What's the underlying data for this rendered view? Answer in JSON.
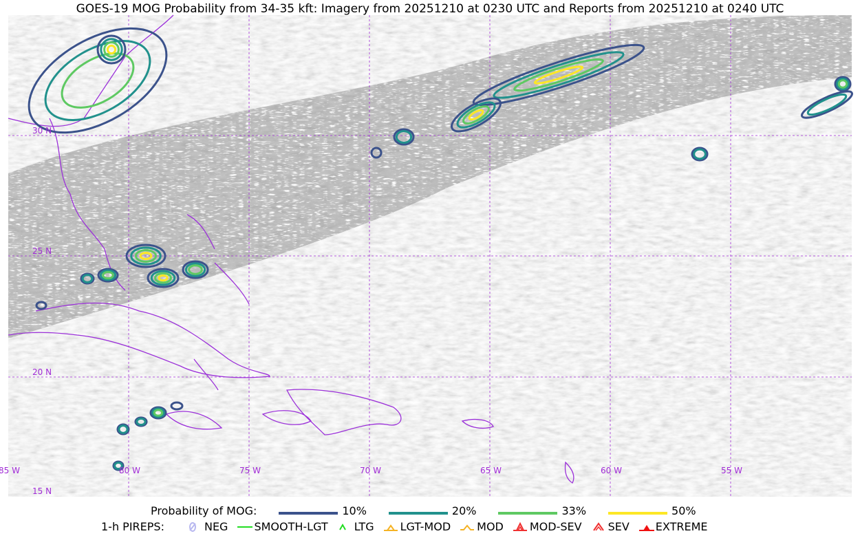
{
  "title": "GOES-19 MOG Probability from 34-35 kft: Imagery from 20251210 at 0230 UTC and Reports from 20251210 at 0240 UTC",
  "map": {
    "lon_labels": [
      "85 W",
      "80 W",
      "75 W",
      "70 W",
      "65 W",
      "60 W",
      "55 W"
    ],
    "lat_labels": [
      "30 N",
      "25 N",
      "20 N",
      "15 N"
    ],
    "grid_color": "#a02bd6",
    "coast_color": "#9b30d9"
  },
  "legend": {
    "prob_label": "Probability of MOG:",
    "levels": [
      {
        "label": "10%",
        "color": "#3b528b"
      },
      {
        "label": "20%",
        "color": "#21918c"
      },
      {
        "label": "33%",
        "color": "#5ec962"
      },
      {
        "label": "50%",
        "color": "#fde725"
      }
    ],
    "pireps_label": "1-h PIREPS:",
    "pireps": [
      {
        "label": "NEG",
        "icon": "neg-icon",
        "color": "#b8b8f0"
      },
      {
        "label": "SMOOTH-LGT",
        "icon": "smooth-lgt-line-icon",
        "color": "#22dd22"
      },
      {
        "label": "LTG",
        "icon": "ltg-caret-icon",
        "color": "#22dd22"
      },
      {
        "label": "LGT-MOD",
        "icon": "lgt-mod-caret-icon",
        "color": "#f5b324"
      },
      {
        "label": "MOD",
        "icon": "mod-caret-icon",
        "color": "#f5b324"
      },
      {
        "label": "MOD-SEV",
        "icon": "mod-sev-icon",
        "color": "#f03030"
      },
      {
        "label": "SEV",
        "icon": "sev-icon",
        "color": "#f03030"
      },
      {
        "label": "EXTREME",
        "icon": "extreme-icon",
        "color": "#f01010"
      }
    ]
  }
}
